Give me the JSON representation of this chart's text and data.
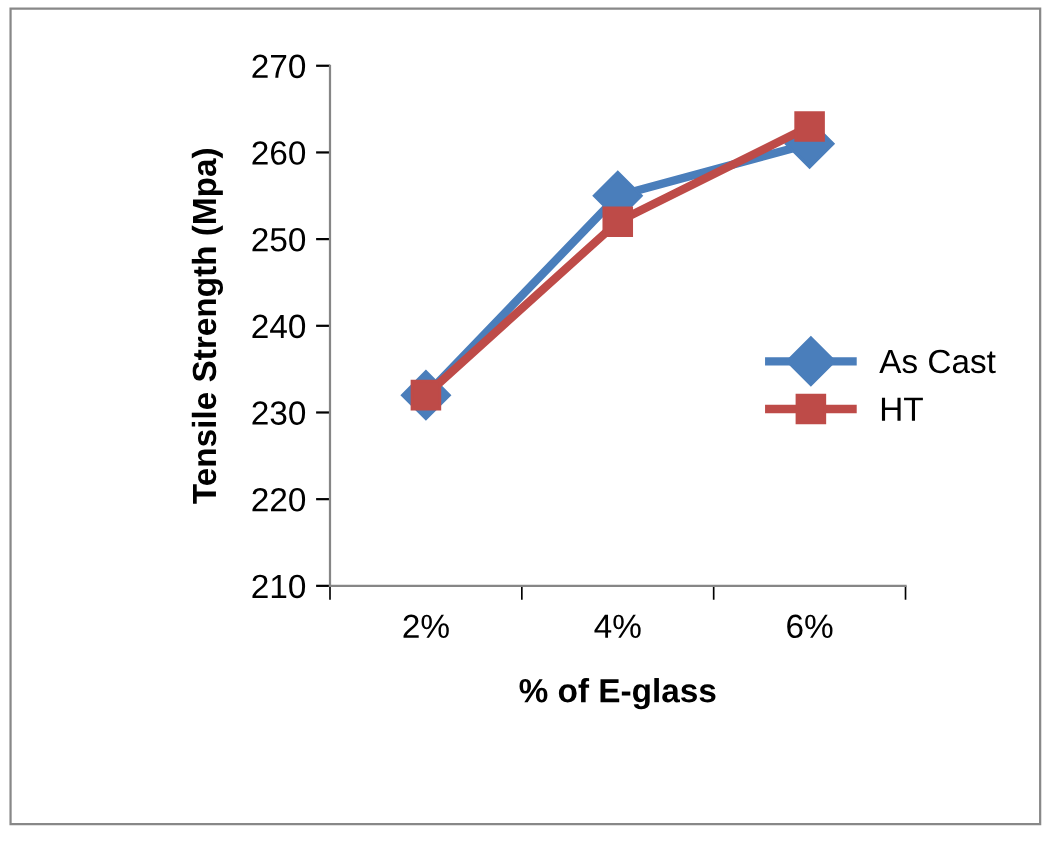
{
  "chart_data": {
    "type": "line",
    "xlabel": "% of E-glass",
    "ylabel": "Tensile Strength (Mpa)",
    "categories": [
      "2%",
      "4%",
      "6%"
    ],
    "series": [
      {
        "name": "As Cast",
        "color": "#4a7ebb",
        "marker": "diamond",
        "values": [
          232,
          255,
          261
        ]
      },
      {
        "name": "HT",
        "color": "#be4b48",
        "marker": "square",
        "values": [
          232,
          252,
          263
        ]
      }
    ],
    "ylim": [
      210,
      270
    ],
    "yticks": [
      210,
      220,
      230,
      240,
      250,
      260,
      270
    ],
    "grid": false,
    "legend": "right",
    "line_style": "solid"
  }
}
